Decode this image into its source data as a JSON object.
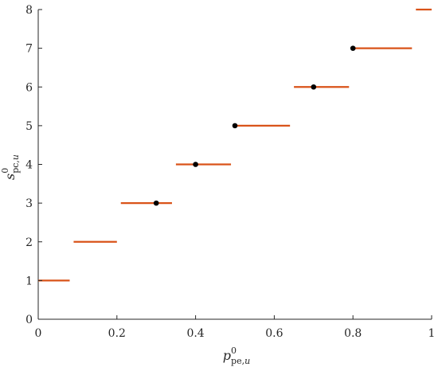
{
  "chart_data": {
    "type": "step",
    "title": "",
    "xlabel": {
      "base": "p",
      "sup": "0",
      "sub": "pe,",
      "sub_italic": "u"
    },
    "ylabel": {
      "base": "s",
      "sup": "0",
      "sub": "pc,",
      "sub_italic": "u"
    },
    "xlim": [
      0,
      1
    ],
    "ylim": [
      0,
      8
    ],
    "xticks": [
      "0",
      "0.2",
      "0.4",
      "0.6",
      "0.8",
      "1"
    ],
    "yticks": [
      "0",
      "1",
      "2",
      "3",
      "4",
      "5",
      "6",
      "7",
      "8"
    ],
    "grid": false,
    "colors": {
      "segment": "#d95319",
      "point": "#000000",
      "axis": "#262626"
    },
    "segments": [
      {
        "x_start": 0.0,
        "x_end": 0.08,
        "y": 1
      },
      {
        "x_start": 0.09,
        "x_end": 0.2,
        "y": 2
      },
      {
        "x_start": 0.21,
        "x_end": 0.34,
        "y": 3
      },
      {
        "x_start": 0.35,
        "x_end": 0.49,
        "y": 4
      },
      {
        "x_start": 0.5,
        "x_end": 0.64,
        "y": 5
      },
      {
        "x_start": 0.65,
        "x_end": 0.79,
        "y": 6
      },
      {
        "x_start": 0.8,
        "x_end": 0.95,
        "y": 7
      },
      {
        "x_start": 0.96,
        "x_end": 1.0,
        "y": 8
      }
    ],
    "points": [
      {
        "x": 0.3,
        "y": 3
      },
      {
        "x": 0.4,
        "y": 4
      },
      {
        "x": 0.5,
        "y": 5
      },
      {
        "x": 0.7,
        "y": 6
      },
      {
        "x": 0.8,
        "y": 7
      }
    ]
  }
}
